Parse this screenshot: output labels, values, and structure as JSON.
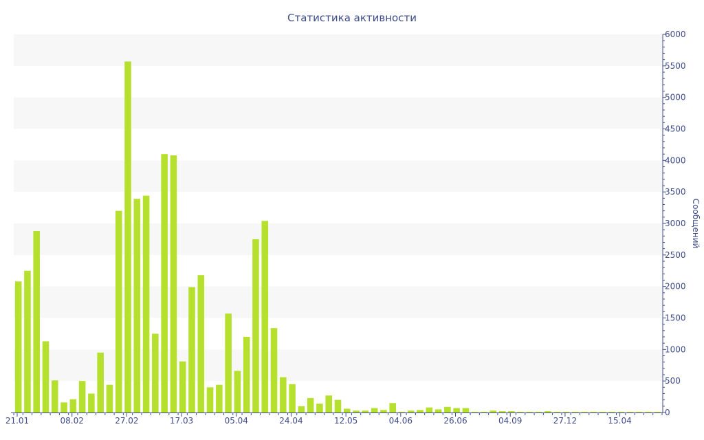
{
  "chart_data": {
    "type": "bar",
    "title": "Статистика активности",
    "ylabel": "Сообщений",
    "xlabel": "",
    "ylim": [
      0,
      6000
    ],
    "ytick_step": 500,
    "y_axis_side": "right",
    "grid": "alternating horizontal bands",
    "bar_color": "#b5e02d",
    "band_color": "#f7f7f7",
    "text_color": "#3d4b8a",
    "axis_color": "#3d4b8a",
    "x_tick_labels": [
      {
        "index": 0,
        "label": "21.01"
      },
      {
        "index": 6,
        "label": "08.02"
      },
      {
        "index": 12,
        "label": "27.02"
      },
      {
        "index": 18,
        "label": "17.03"
      },
      {
        "index": 24,
        "label": "05.04"
      },
      {
        "index": 30,
        "label": "24.04"
      },
      {
        "index": 36,
        "label": "12.05"
      },
      {
        "index": 42,
        "label": "04.06"
      },
      {
        "index": 48,
        "label": "26.06"
      },
      {
        "index": 54,
        "label": "04.09"
      },
      {
        "index": 60,
        "label": "27.12"
      },
      {
        "index": 66,
        "label": "15.04"
      }
    ],
    "values": [
      2080,
      2250,
      2880,
      1130,
      510,
      160,
      210,
      500,
      300,
      950,
      440,
      3200,
      5570,
      3390,
      3440,
      1250,
      4100,
      4080,
      810,
      1990,
      2180,
      400,
      440,
      1570,
      660,
      1200,
      2750,
      3040,
      1340,
      560,
      450,
      100,
      230,
      140,
      270,
      200,
      60,
      30,
      30,
      70,
      40,
      150,
      10,
      30,
      40,
      80,
      50,
      90,
      70,
      70,
      10,
      10,
      30,
      20,
      20,
      10,
      10,
      10,
      20,
      10,
      10,
      10,
      10,
      10,
      10,
      10,
      10,
      10,
      10,
      10,
      10
    ]
  }
}
